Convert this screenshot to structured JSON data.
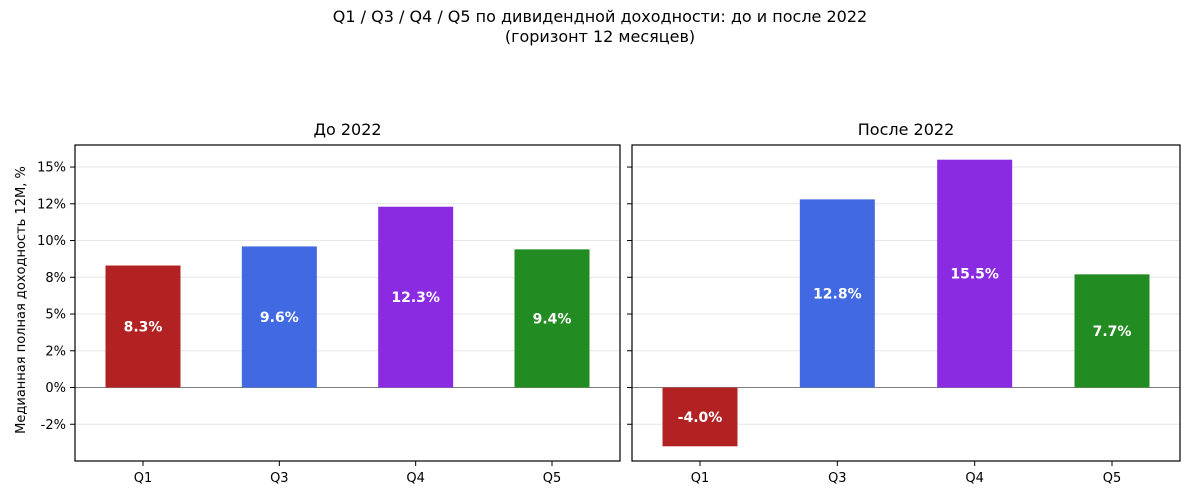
{
  "figure": {
    "title": "Q1 / Q3 / Q4 / Q5 по дивидендной доходности: до и после 2022",
    "subtitle": "(горизонт 12 месяцев)"
  },
  "chart_data": [
    {
      "type": "bar",
      "title": "До 2022",
      "categories": [
        "Q1",
        "Q3",
        "Q4",
        "Q5"
      ],
      "values": [
        8.3,
        9.6,
        12.3,
        9.4
      ],
      "value_labels": [
        "8.3%",
        "9.6%",
        "12.3%",
        "9.4%"
      ],
      "colors": [
        "#b22222",
        "#4169e1",
        "#8a2be2",
        "#228b22"
      ],
      "ylabel": "Медианная полная доходность 12М, %",
      "ylim": [
        -5,
        16.5
      ],
      "yticks": [
        -2.5,
        0,
        2.5,
        5,
        7.5,
        10,
        12.5,
        15
      ],
      "ytick_labels": [
        "-2%",
        "0%",
        "2%",
        "5%",
        "8%",
        "10%",
        "12%",
        "15%"
      ],
      "grid": "horizontal"
    },
    {
      "type": "bar",
      "title": "После 2022",
      "categories": [
        "Q1",
        "Q3",
        "Q4",
        "Q5"
      ],
      "values": [
        -4.0,
        12.8,
        15.5,
        7.7
      ],
      "value_labels": [
        "-4.0%",
        "12.8%",
        "15.5%",
        "7.7%"
      ],
      "colors": [
        "#b22222",
        "#4169e1",
        "#8a2be2",
        "#228b22"
      ],
      "ylim": [
        -5,
        16.5
      ],
      "yticks": [
        -2.5,
        0,
        2.5,
        5,
        7.5,
        10,
        12.5,
        15
      ],
      "ytick_labels": [
        "",
        "",
        "",
        "",
        "",
        "",
        "",
        ""
      ],
      "grid": "horizontal"
    }
  ]
}
